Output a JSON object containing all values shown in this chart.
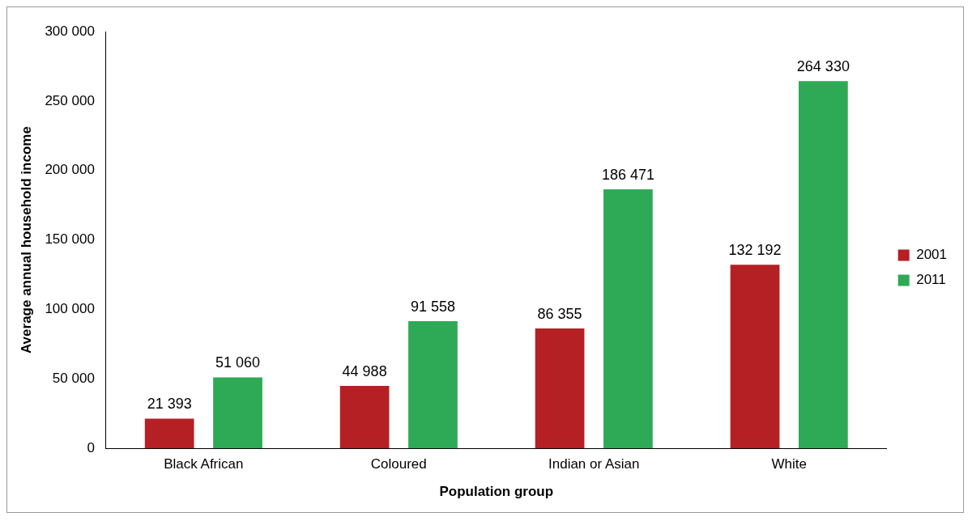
{
  "chart_data": {
    "type": "bar",
    "xlabel": "Population group",
    "ylabel": "Average annual household income",
    "categories": [
      "Black African",
      "Coloured",
      "Indian or Asian",
      "White"
    ],
    "series": [
      {
        "name": "2001",
        "color": "#b52025",
        "values": [
          21393,
          44988,
          86355,
          132192
        ],
        "value_labels": [
          "21 393",
          "44 988",
          "86 355",
          "132 192"
        ]
      },
      {
        "name": "2011",
        "color": "#2eaa57",
        "values": [
          51060,
          91558,
          186471,
          264330
        ],
        "value_labels": [
          "51 060",
          "91 558",
          "186 471",
          "264 330"
        ]
      }
    ],
    "ylim": [
      0,
      300000
    ],
    "yticks": [
      {
        "value": 0,
        "label": "0"
      },
      {
        "value": 50000,
        "label": "50 000"
      },
      {
        "value": 100000,
        "label": "100 000"
      },
      {
        "value": 150000,
        "label": "150 000"
      },
      {
        "value": 200000,
        "label": "200 000"
      },
      {
        "value": 250000,
        "label": "250 000"
      },
      {
        "value": 300000,
        "label": "300 000"
      }
    ],
    "grid": false,
    "legend": "right"
  }
}
